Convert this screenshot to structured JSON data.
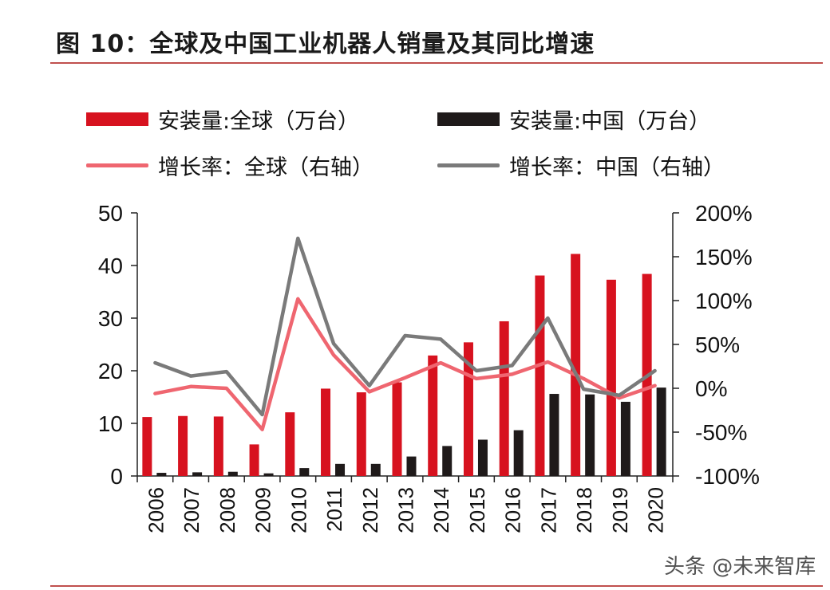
{
  "header": {
    "title": "图 10：全球及中国工业机器人销量及其同比增速"
  },
  "legend": [
    {
      "label": "安装量:全球（万台）",
      "kind": "bar",
      "color": "#d7121f"
    },
    {
      "label": "安装量:中国（万台）",
      "kind": "bar",
      "color": "#1f1a1a"
    },
    {
      "label": "增长率：全球（右轴）",
      "kind": "line",
      "color": "#ef6670"
    },
    {
      "label": "增长率：中国（右轴）",
      "kind": "line",
      "color": "#7a7a7a"
    }
  ],
  "watermark": "头条 @未来智库",
  "chart_data": {
    "type": "bar",
    "categories": [
      "2006",
      "2007",
      "2008",
      "2009",
      "2010",
      "2011",
      "2012",
      "2013",
      "2014",
      "2015",
      "2016",
      "2017",
      "2018",
      "2019",
      "2020"
    ],
    "series": [
      {
        "name": "安装量:全球（万台）",
        "type": "bar",
        "axis": "left",
        "color": "#d7121f",
        "values": [
          11.2,
          11.4,
          11.3,
          6.0,
          12.1,
          16.6,
          15.9,
          17.8,
          22.9,
          25.4,
          29.4,
          38.1,
          42.2,
          37.3,
          38.4
        ]
      },
      {
        "name": "安装量:中国（万台）",
        "type": "bar",
        "axis": "left",
        "color": "#1f1a1a",
        "values": [
          0.6,
          0.7,
          0.8,
          0.5,
          1.5,
          2.3,
          2.3,
          3.7,
          5.7,
          6.9,
          8.7,
          15.6,
          15.5,
          14.1,
          16.8
        ]
      },
      {
        "name": "增长率：全球（右轴）",
        "type": "line",
        "axis": "right",
        "color": "#ef6670",
        "values": [
          -6,
          2,
          0,
          -47,
          102,
          38,
          -4,
          12,
          29,
          11,
          16,
          30,
          11,
          -11,
          3
        ]
      },
      {
        "name": "增长率：中国（右轴）",
        "type": "line",
        "axis": "right",
        "color": "#7a7a7a",
        "values": [
          29,
          14,
          19,
          -30,
          171,
          51,
          3,
          60,
          56,
          20,
          26,
          80,
          -1,
          -8,
          20
        ]
      }
    ],
    "y_left": {
      "min": 0,
      "max": 50,
      "ticks": [
        "0",
        "10",
        "20",
        "30",
        "40",
        "50"
      ]
    },
    "y_right": {
      "min": -100,
      "max": 200,
      "ticks": [
        "-100%",
        "-50%",
        "0%",
        "50%",
        "100%",
        "150%",
        "200%"
      ]
    },
    "grid": false,
    "legend_position": "top"
  }
}
